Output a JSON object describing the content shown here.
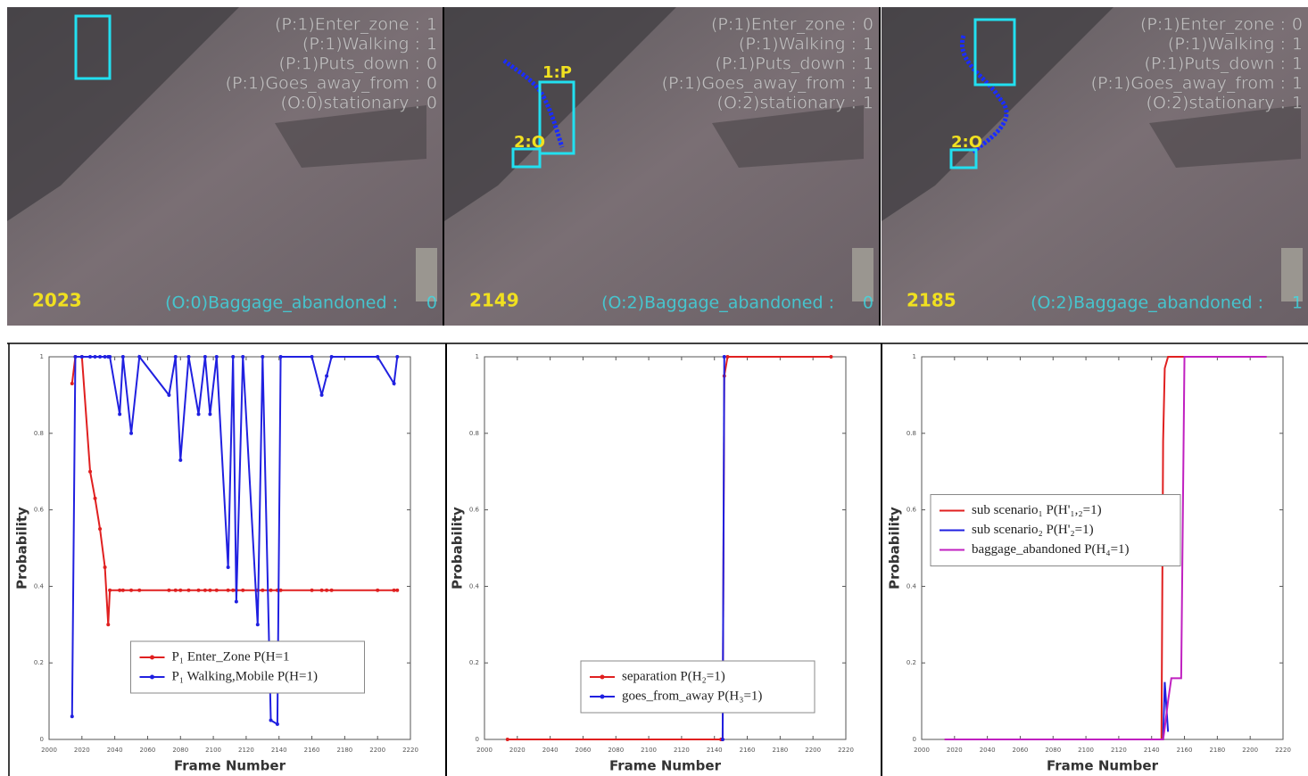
{
  "frames": [
    {
      "frame_number": "2023",
      "rows": [
        {
          "label": "(P:1)Enter_zone :",
          "value": 1
        },
        {
          "label": "(P:1)Walking :",
          "value": 1
        },
        {
          "label": "(P:1)Puts_down :",
          "value": 0
        },
        {
          "label": "(P:1)Goes_away_from :",
          "value": 0
        },
        {
          "label": "(O:0)stationary :",
          "value": 0
        }
      ],
      "footer": {
        "label": "(O:0)Baggage_abandoned :",
        "value": 0
      },
      "tags": []
    },
    {
      "frame_number": "2149",
      "rows": [
        {
          "label": "(P:1)Enter_zone :",
          "value": 0
        },
        {
          "label": "(P:1)Walking :",
          "value": 1
        },
        {
          "label": "(P:1)Puts_down :",
          "value": 1
        },
        {
          "label": "(P:1)Goes_away_from :",
          "value": 1
        },
        {
          "label": "(O:2)stationary :",
          "value": 1
        }
      ],
      "footer": {
        "label": "(O:2)Baggage_abandoned :",
        "value": 0
      },
      "tags": [
        "1:P",
        "2:O"
      ]
    },
    {
      "frame_number": "2185",
      "rows": [
        {
          "label": "(P:1)Enter_zone :",
          "value": 0
        },
        {
          "label": "(P:1)Walking :",
          "value": 1
        },
        {
          "label": "(P:1)Puts_down :",
          "value": 1
        },
        {
          "label": "(P:1)Goes_away_from :",
          "value": 1
        },
        {
          "label": "(O:2)stationary :",
          "value": 1
        }
      ],
      "footer": {
        "label": "(O:2)Baggage_abandoned :",
        "value": 1
      },
      "tags": [
        "2:O"
      ]
    }
  ],
  "chart_data": [
    {
      "type": "line",
      "xlabel": "Frame Number",
      "ylabel": "Probability",
      "legend": "lower center",
      "marker": true,
      "x": [
        2014,
        2016,
        2020,
        2025,
        2028,
        2031,
        2034,
        2036,
        2037,
        2043,
        2045,
        2050,
        2055,
        2073,
        2077,
        2080,
        2085,
        2091,
        2095,
        2098,
        2102,
        2109,
        2112,
        2114,
        2118,
        2127,
        2130,
        2135,
        2139,
        2141,
        2160,
        2166,
        2169,
        2172,
        2200,
        2210,
        2212
      ],
      "series": [
        {
          "name": "P₁ Enter_Zone P(H=1",
          "color": "#e02020",
          "values": [
            0.93,
            1,
            1,
            0.7,
            0.63,
            0.55,
            0.45,
            0.3,
            0.39,
            0.39,
            0.39,
            0.39,
            0.39,
            0.39,
            0.39,
            0.39,
            0.39,
            0.39,
            0.39,
            0.39,
            0.39,
            0.39,
            0.39,
            0.39,
            0.39,
            0.39,
            0.39,
            0.39,
            0.39,
            0.39,
            0.39,
            0.39,
            0.39,
            0.39,
            0.39,
            0.39,
            0.39
          ]
        },
        {
          "name": "P₁ Walking,Mobile P(H=1)",
          "color": "#2020e0",
          "values": [
            0.06,
            1,
            1,
            1,
            1,
            1,
            1,
            1,
            1,
            0.85,
            1,
            0.8,
            1,
            0.9,
            1,
            0.73,
            1,
            0.85,
            1,
            0.85,
            1,
            0.45,
            1,
            0.36,
            1,
            0.3,
            1,
            0.05,
            0.04,
            1,
            1,
            0.9,
            0.95,
            1,
            1,
            0.93,
            1
          ]
        }
      ],
      "xlim": [
        2000,
        2220
      ],
      "xticks": [
        2000,
        2020,
        2040,
        2060,
        2080,
        2100,
        2120,
        2140,
        2160,
        2180,
        2200,
        2220
      ],
      "ylim": [
        0,
        1
      ],
      "yticks": [
        0,
        0.2,
        0.4,
        0.6,
        0.8,
        1
      ]
    },
    {
      "type": "line",
      "xlabel": "Frame Number",
      "ylabel": "Probability",
      "legend": "lower right",
      "marker": true,
      "x": [
        2014,
        2144,
        2145,
        2146,
        2148,
        2211
      ],
      "series": [
        {
          "name": "separation P(H₂=1)",
          "color": "#e02020",
          "values": [
            0,
            0,
            0,
            0.95,
            1,
            1
          ]
        },
        {
          "name": "goes_from_away P(H₃=1)",
          "color": "#2020e0",
          "values": [
            null,
            null,
            0,
            1,
            null,
            null
          ]
        }
      ],
      "xlim": [
        2000,
        2220
      ],
      "xticks": [
        2000,
        2020,
        2040,
        2060,
        2080,
        2100,
        2120,
        2140,
        2160,
        2180,
        2200,
        2220
      ],
      "ylim": [
        0,
        1
      ],
      "yticks": [
        0,
        0.2,
        0.4,
        0.6,
        0.8,
        1
      ]
    },
    {
      "type": "line",
      "xlabel": "Frame Number",
      "ylabel": "Probability",
      "legend": "center left",
      "marker": false,
      "x": [
        2014,
        2146,
        2147,
        2148,
        2150,
        2152,
        2158,
        2160,
        2210
      ],
      "series": [
        {
          "name": "sub scenario₁ P(H'₁,₂=1)",
          "color": "#e02020",
          "values": [
            0,
            0,
            0.78,
            0.97,
            1,
            1,
            1,
            1,
            1
          ]
        },
        {
          "name": "sub scenario₂ P(H'₂=1)",
          "color": "#2020e0",
          "values": [
            null,
            0,
            0,
            0.15,
            0.02,
            null,
            null,
            null,
            null
          ]
        },
        {
          "name": "baggage_abandoned P(H₄=1)",
          "color": "#c020c0",
          "values": [
            0,
            0,
            0,
            0.03,
            0.1,
            0.16,
            0.16,
            1,
            1
          ]
        }
      ],
      "xlim": [
        2000,
        2220
      ],
      "xticks": [
        2000,
        2020,
        2040,
        2060,
        2080,
        2100,
        2120,
        2140,
        2160,
        2180,
        2200,
        2220
      ],
      "ylim": [
        0,
        1
      ],
      "yticks": [
        0,
        0.2,
        0.4,
        0.6,
        0.8,
        1
      ]
    }
  ]
}
